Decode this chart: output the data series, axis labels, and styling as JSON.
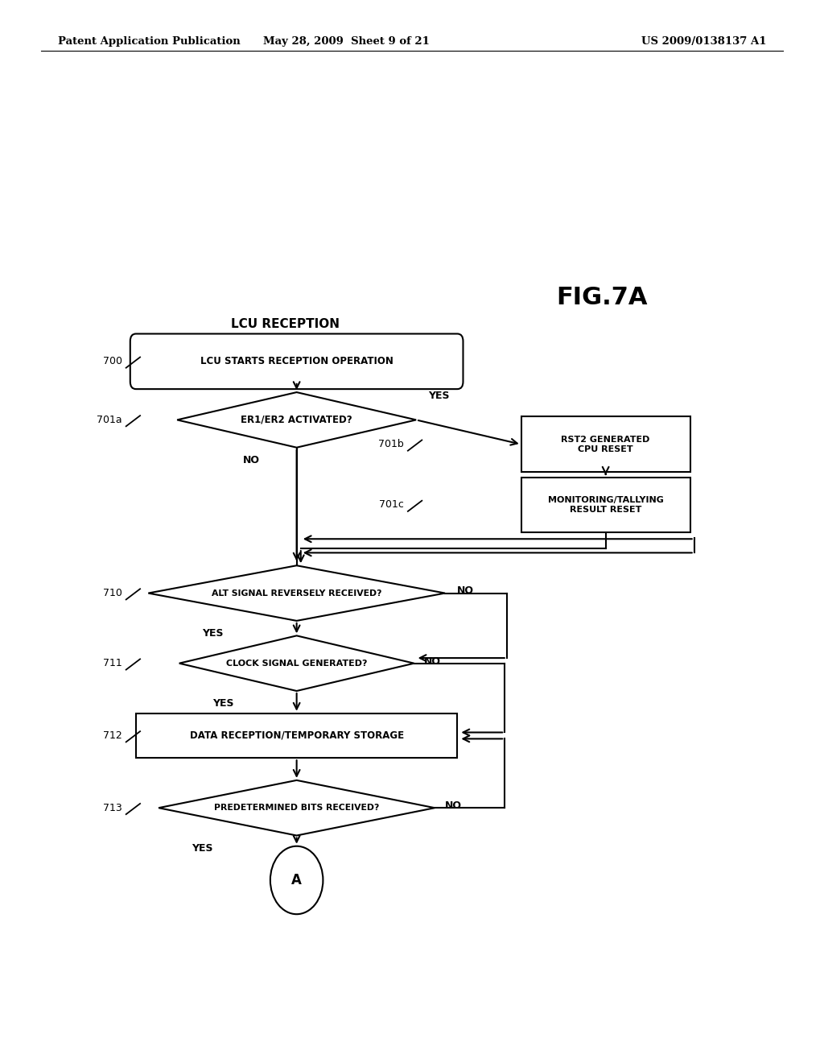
{
  "bg_color": "#ffffff",
  "header_left": "Patent Application Publication",
  "header_center": "May 28, 2009  Sheet 9 of 21",
  "header_right": "US 2009/0138137 A1",
  "fig_label": "FIG.7A",
  "section_label": "LCU RECEPTION",
  "node_700_label": "LCU STARTS RECEPTION OPERATION",
  "node_701a_label": "ER1/ER2 ACTIVATED?",
  "node_701b_label": "RST2 GENERATED\nCPU RESET",
  "node_701c_label": "MONITORING/TALLYING\nRESULT RESET",
  "node_710_label": "ALT SIGNAL REVERSELY RECEIVED?",
  "node_711_label": "CLOCK SIGNAL GENERATED?",
  "node_712_label": "DATA RECEPTION/TEMPORARY STORAGE",
  "node_713_label": "PREDETERMINED BITS RECEIVED?",
  "node_A_label": "A",
  "ref_700": "700",
  "ref_701a": "701a",
  "ref_701b": "701b",
  "ref_701c": "701c",
  "ref_710": "710",
  "ref_711": "711",
  "ref_712": "712",
  "ref_713": "713"
}
